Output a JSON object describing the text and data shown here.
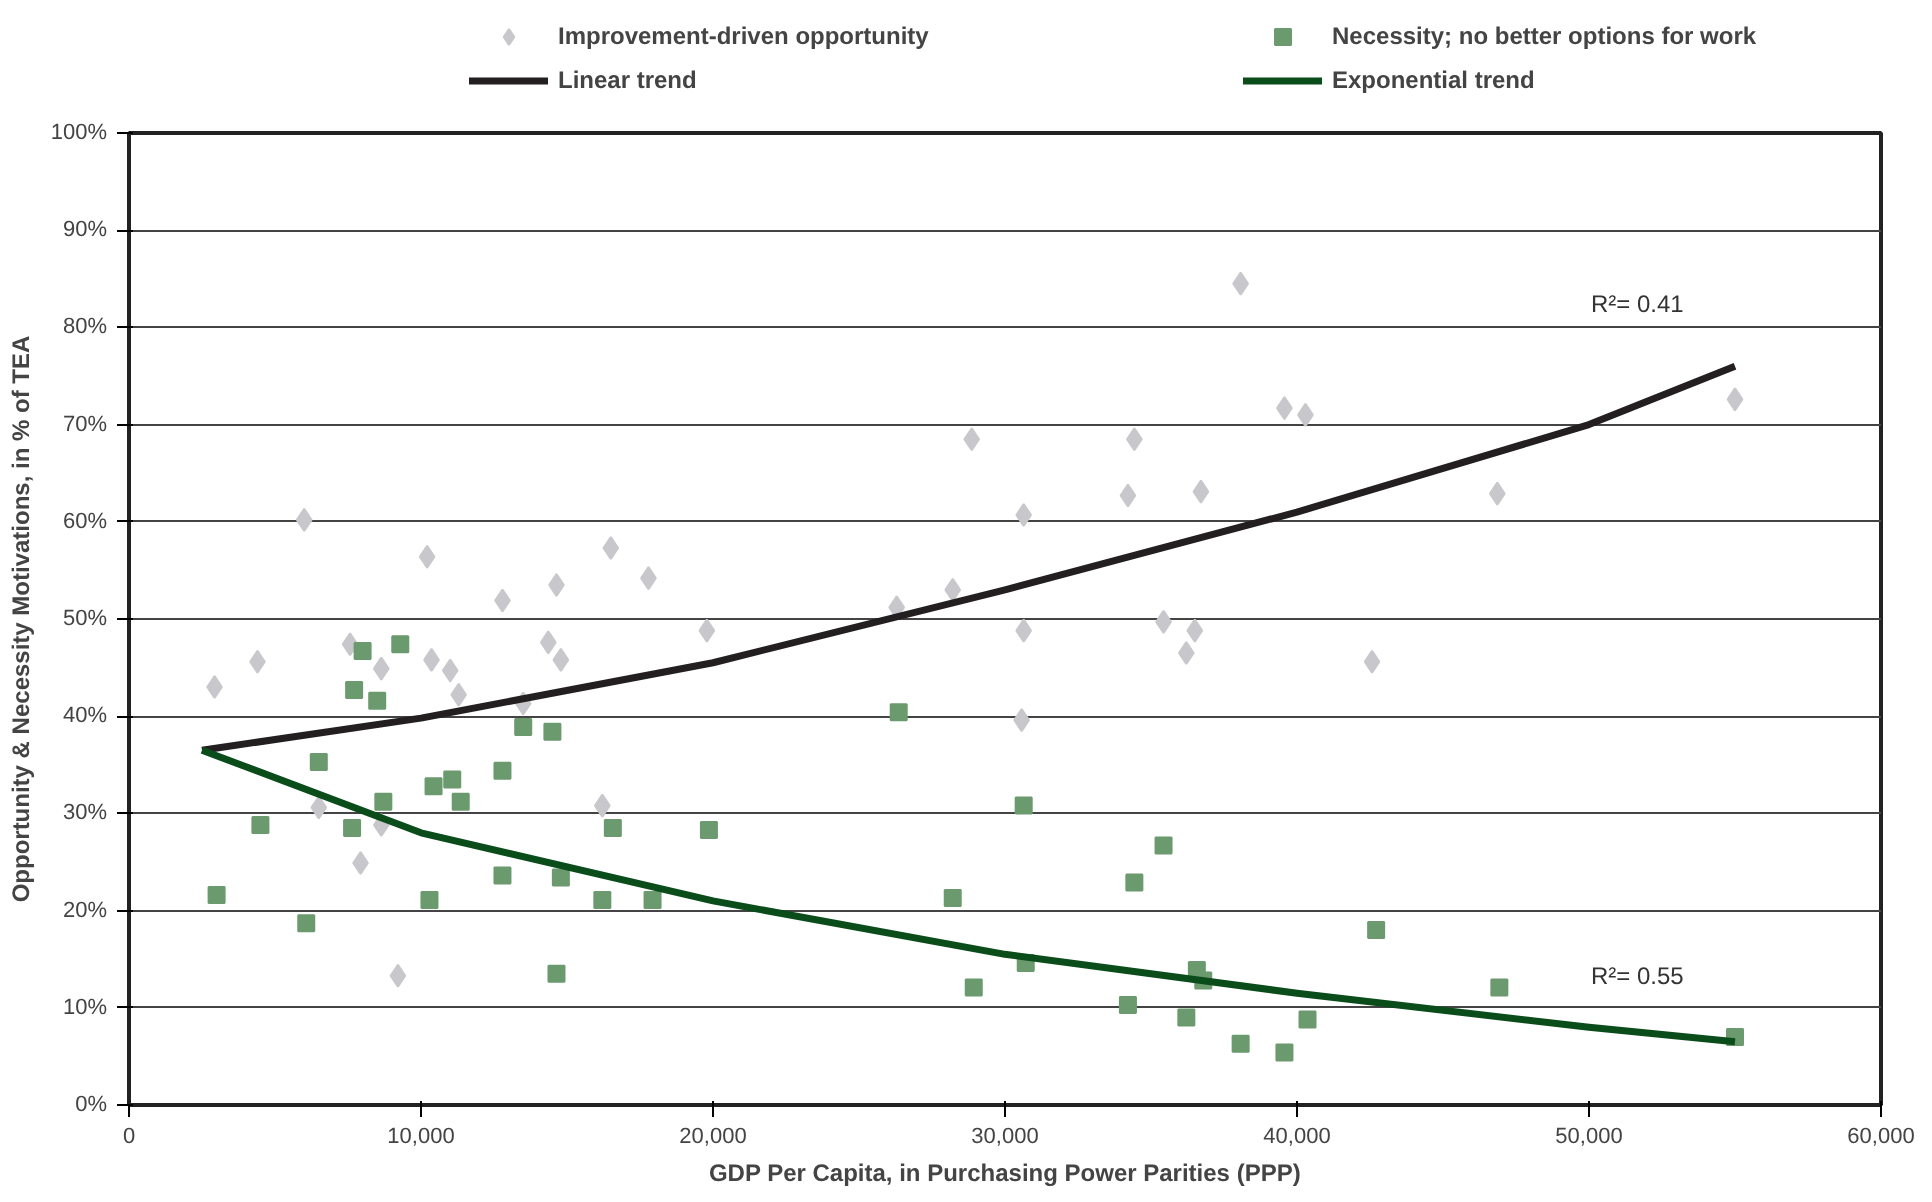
{
  "chart_data": {
    "type": "scatter",
    "xlabel": "GDP Per Capita, in Purchasing Power Parities (PPP)",
    "ylabel": "Opportunity & Necessity Motivations, in % of TEA",
    "xlim": [
      0,
      60000
    ],
    "xticks": [
      0,
      {
        "value": 10000,
        "label": "10,000"
      },
      {
        "value": 20000,
        "label": "20,000"
      },
      {
        "value": 30000,
        "label": "30,000"
      },
      {
        "value": 40000,
        "label": "40,000"
      },
      {
        "value": 50000,
        "label": "50,000"
      },
      {
        "value": 60000,
        "label": "60,000"
      }
    ],
    "ylim": [
      0,
      100
    ],
    "yticks": [
      {
        "value": 0,
        "label": "0%"
      },
      {
        "value": 10,
        "label": "10%"
      },
      {
        "value": 20,
        "label": "20%"
      },
      {
        "value": 30,
        "label": "30%"
      },
      {
        "value": 40,
        "label": "40%"
      },
      {
        "value": 50,
        "label": "50%"
      },
      {
        "value": 60,
        "label": "60%"
      },
      {
        "value": 70,
        "label": "70%"
      },
      {
        "value": 80,
        "label": "80%"
      },
      {
        "value": 90,
        "label": "90%"
      },
      {
        "value": 100,
        "label": "100%"
      }
    ],
    "grid": "y",
    "legend": "top",
    "series": [
      {
        "name": "Improvement-driven opportunity",
        "color": "#c8c8cc",
        "marker": "diamond",
        "x": [
          2930,
          4400,
          6000,
          7570,
          8640,
          10210,
          10360,
          11000,
          11290,
          12790,
          14640,
          14360,
          14790,
          13500,
          16500,
          17790,
          19790,
          6500,
          8640,
          7930,
          9210,
          16210,
          38070,
          28860,
          34430,
          39570,
          40290,
          34210,
          36710,
          30640,
          26290,
          28210,
          30640,
          35430,
          36500,
          36210,
          30570,
          55000,
          46860,
          42570
        ],
        "values": [
          43.0,
          45.6,
          60.2,
          47.4,
          44.9,
          56.4,
          45.8,
          44.7,
          42.2,
          51.9,
          53.5,
          47.6,
          45.8,
          41.3,
          57.3,
          54.2,
          48.8,
          30.6,
          28.8,
          24.9,
          13.3,
          30.8,
          84.5,
          68.5,
          68.5,
          71.7,
          71.0,
          62.7,
          63.1,
          60.7,
          51.2,
          53.0,
          48.8,
          49.7,
          48.8,
          46.5,
          39.6,
          72.6,
          62.9,
          45.6
        ]
      },
      {
        "name": "Necessity; no better options for work",
        "color": "#6a9a6e",
        "marker": "square",
        "x": [
          3000,
          4500,
          6070,
          6500,
          7640,
          7710,
          8000,
          8500,
          8710,
          9290,
          10290,
          10430,
          11070,
          11360,
          12790,
          12790,
          13500,
          14500,
          14640,
          14790,
          16210,
          16570,
          17930,
          19860,
          26360,
          30640,
          35430,
          34430,
          28210,
          28930,
          30710,
          36570,
          36790,
          34210,
          36210,
          38070,
          39570,
          40360,
          42710,
          46930,
          55000
        ],
        "values": [
          21.6,
          28.8,
          18.7,
          35.3,
          28.5,
          42.7,
          46.7,
          41.6,
          31.2,
          47.4,
          21.1,
          32.8,
          33.5,
          31.2,
          34.4,
          23.6,
          38.9,
          38.4,
          13.5,
          23.4,
          21.1,
          28.5,
          21.1,
          28.3,
          40.4,
          30.8,
          26.7,
          22.9,
          21.3,
          12.1,
          14.6,
          13.9,
          12.8,
          10.3,
          9.0,
          6.3,
          5.4,
          8.8,
          18.0,
          12.1,
          7.0
        ]
      },
      {
        "name": "Linear trend",
        "type": "line",
        "color": "#231f20",
        "marker": "none",
        "line_style": "solid",
        "x": [
          2500,
          10000,
          20000,
          30000,
          40000,
          50000,
          55000
        ],
        "values": [
          36.5,
          39.8,
          45.5,
          53,
          61,
          70,
          76
        ]
      },
      {
        "name": "Exponential trend",
        "type": "line",
        "color": "#0a4d1a",
        "marker": "none",
        "line_style": "solid",
        "x": [
          2500,
          10000,
          20000,
          30000,
          40000,
          50000,
          55000
        ],
        "values": [
          36.5,
          28,
          21,
          15.5,
          11.5,
          8,
          6.5
        ]
      }
    ],
    "annotations": [
      "R²= 0.41",
      "R²= 0.55"
    ]
  }
}
